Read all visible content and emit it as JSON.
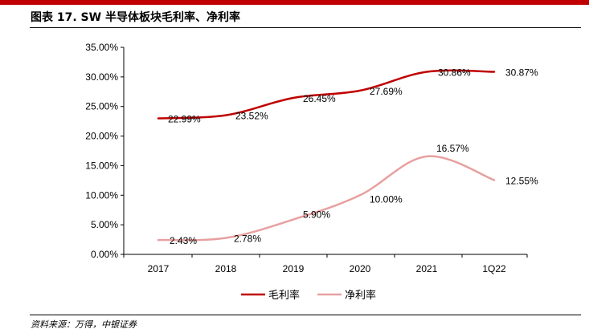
{
  "header": {
    "title": "图表 17.   SW 半导体板块毛利率、净利率",
    "accent_color": "#c00000"
  },
  "footer": {
    "source": "资料来源：万得，中银证券"
  },
  "chart_data": {
    "type": "line",
    "categories": [
      "2017",
      "2018",
      "2019",
      "2020",
      "2021",
      "1Q22"
    ],
    "series": [
      {
        "name": "毛利率",
        "color": "#c00000",
        "values": [
          22.99,
          23.52,
          26.45,
          27.69,
          30.86,
          30.87
        ],
        "labels": [
          "22.99%",
          "23.52%",
          "26.45%",
          "27.69%",
          "30.86%",
          "30.87%"
        ]
      },
      {
        "name": "净利率",
        "color": "#e8a0a0",
        "values": [
          2.43,
          2.78,
          5.9,
          10.0,
          16.57,
          12.55
        ],
        "labels": [
          "2.43%",
          "2.78%",
          "5.90%",
          "10.00%",
          "16.57%",
          "12.55%"
        ]
      }
    ],
    "ylim": [
      0,
      35
    ],
    "yticks": [
      0,
      5,
      10,
      15,
      20,
      25,
      30,
      35
    ],
    "ytick_labels": [
      "0.00%",
      "5.00%",
      "10.00%",
      "15.00%",
      "20.00%",
      "25.00%",
      "30.00%",
      "35.00%"
    ],
    "grid": false,
    "legend": "bottom-center",
    "smooth": true
  }
}
